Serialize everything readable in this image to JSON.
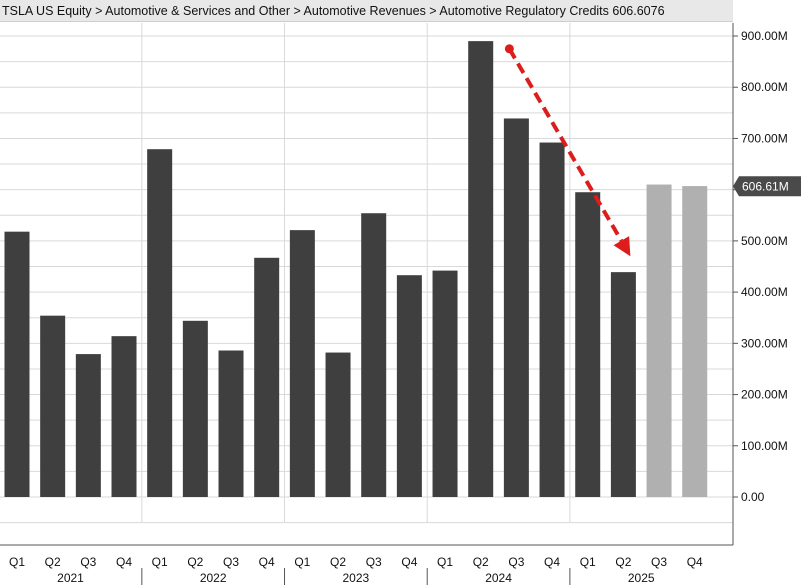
{
  "header": {
    "breadcrumb": "TSLA US Equity > Automotive & Services and Other > Automotive Revenues > Automotive Regulatory Credits",
    "current_value": "606.6076"
  },
  "colors": {
    "actual": "#3f3f3f",
    "estimate": "#b0b0b0",
    "arrow": "#dd1c1c",
    "badge_bg": "#4a4a4a"
  },
  "chart_data": {
    "type": "bar",
    "title": "",
    "xlabel": "",
    "ylabel": "",
    "categories": [
      "Q1 2021",
      "Q2 2021",
      "Q3 2021",
      "Q4 2021",
      "Q1 2022",
      "Q2 2022",
      "Q3 2022",
      "Q4 2022",
      "Q1 2023",
      "Q2 2023",
      "Q3 2023",
      "Q4 2023",
      "Q1 2024",
      "Q2 2024",
      "Q3 2024",
      "Q4 2024",
      "Q1 2025",
      "Q2 2025",
      "Q3 2025",
      "Q4 2025"
    ],
    "quarter_labels": [
      "Q1",
      "Q2",
      "Q3",
      "Q4",
      "Q1",
      "Q2",
      "Q3",
      "Q4",
      "Q1",
      "Q2",
      "Q3",
      "Q4",
      "Q1",
      "Q2",
      "Q3",
      "Q4",
      "Q1",
      "Q2",
      "Q3",
      "Q4"
    ],
    "years": [
      "2021",
      "2022",
      "2023",
      "2024",
      "2025"
    ],
    "series": [
      {
        "values": [
          518,
          354,
          279,
          314,
          679,
          344,
          286,
          467,
          521,
          282,
          554,
          433,
          442,
          890,
          739,
          692,
          595,
          439,
          610,
          607
        ],
        "estimate_flags": [
          false,
          false,
          false,
          false,
          false,
          false,
          false,
          false,
          false,
          false,
          false,
          false,
          false,
          false,
          false,
          false,
          false,
          false,
          true,
          true
        ]
      }
    ],
    "ylim": [
      -50,
      925
    ],
    "yticks": [
      0,
      100,
      200,
      300,
      400,
      500,
      600,
      700,
      800,
      900
    ],
    "ytick_labels": [
      "0.00",
      "100.00M",
      "200.00M",
      "300.00M",
      "400.00M",
      "500.00M",
      "600.00M",
      "700.00M",
      "800.00M",
      "900.00M"
    ],
    "grid": true,
    "last_value_label": "606.61M",
    "last_value": 606.61,
    "annotation": {
      "type": "dashed-arrow",
      "from": {
        "category": "Q3 2024",
        "value": 875
      },
      "to": {
        "category": "Q2 2025",
        "value": 470
      }
    }
  }
}
